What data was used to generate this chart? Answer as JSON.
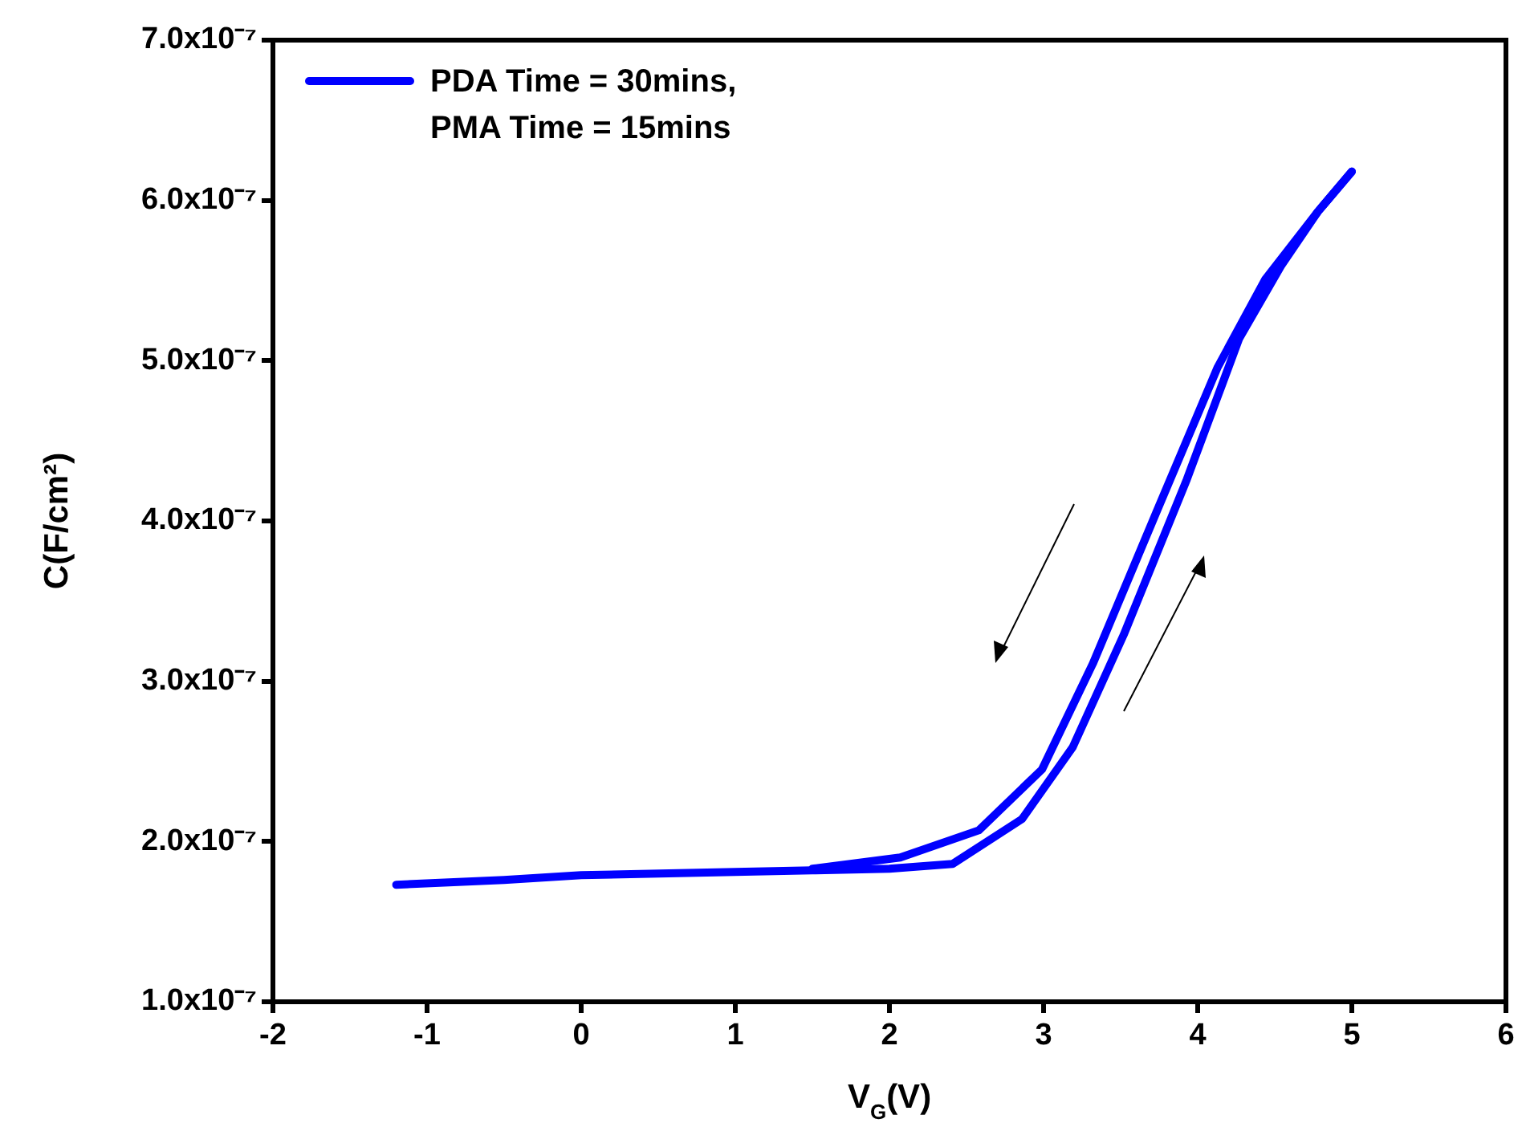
{
  "chart_data": {
    "type": "line",
    "xlabel": "V$_{G}$(V)",
    "ylabel": "C(F/cm²)",
    "xlim": [
      -2,
      6
    ],
    "xticks": [
      -2,
      -1,
      0,
      1,
      2,
      3,
      4,
      5,
      6
    ],
    "ylim": [
      1e-07,
      7e-07
    ],
    "yticks": [
      {
        "value": 1e-07,
        "label": "1.0x10⁻⁷"
      },
      {
        "value": 2e-07,
        "label": "2.0x10⁻⁷"
      },
      {
        "value": 3e-07,
        "label": "3.0x10⁻⁷"
      },
      {
        "value": 4e-07,
        "label": "4.0x10⁻⁷"
      },
      {
        "value": 5e-07,
        "label": "5.0x10⁻⁷"
      },
      {
        "value": 6e-07,
        "label": "6.0x10⁻⁷"
      },
      {
        "value": 7e-07,
        "label": "7.0x10⁻⁷"
      }
    ],
    "series": [
      {
        "name": "PDA Time = 30mins,\nPMA Time = 15mins",
        "color": "#0000ff",
        "x": [
          -1.2,
          -0.5,
          0,
          1,
          1.5,
          2,
          2.41,
          2.86,
          3.19,
          3.52,
          3.93,
          4.27,
          4.54,
          4.78,
          5.0
        ],
        "values": [
          1.73e-07,
          1.76e-07,
          1.79e-07,
          1.81e-07,
          1.82e-07,
          1.83e-07,
          1.86e-07,
          2.14e-07,
          2.59e-07,
          3.29e-07,
          4.26e-07,
          5.14e-07,
          5.59e-07,
          5.93e-07,
          6.18e-07
        ]
      },
      {
        "color": "#0000ff",
        "x": [
          1.5,
          2.07,
          2.58,
          2.99,
          3.32,
          3.73,
          4.13,
          4.44,
          4.78,
          5.0
        ],
        "values": [
          1.83e-07,
          1.9e-07,
          2.07e-07,
          2.45e-07,
          3.11e-07,
          4.05e-07,
          4.96e-07,
          5.51e-07,
          5.93e-07,
          6.18e-07
        ]
      }
    ],
    "legend": "top left",
    "grid": false,
    "marker": "none",
    "line_style": "solid"
  }
}
